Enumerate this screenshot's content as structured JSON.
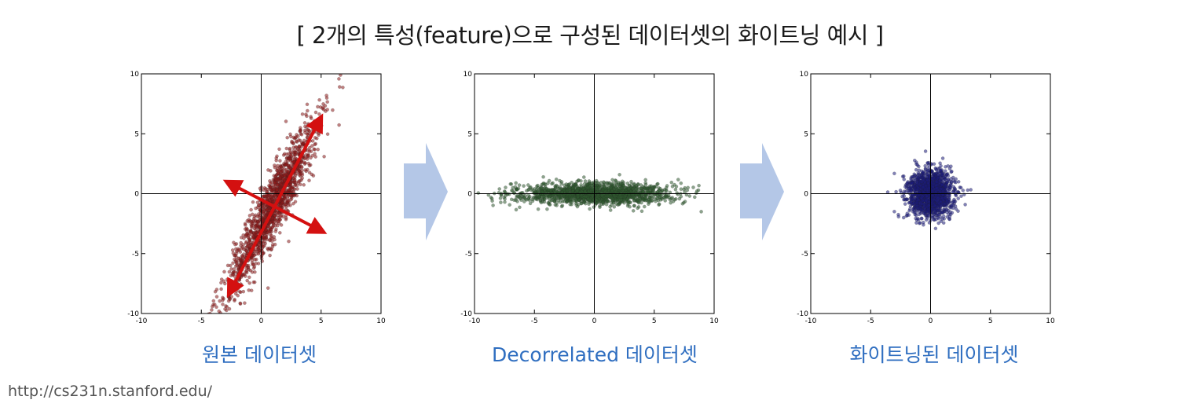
{
  "title": "[ 2개의 특성(feature)으로 구성된 데이터셋의 화이트닝 예시 ]",
  "source": "http://cs231n.stanford.edu/",
  "charts": [
    {
      "caption": "원본 데이터셋",
      "y_ticks": [
        "10",
        "5",
        "0",
        "-5",
        "-10"
      ],
      "x_ticks": [
        "-10",
        "-5",
        "0",
        "5",
        "10"
      ]
    },
    {
      "caption": "Decorrelated 데이터셋",
      "y_ticks": [
        "10",
        "5",
        "0",
        "-5",
        "-10"
      ],
      "x_ticks": [
        "-10",
        "-5",
        "0",
        "5",
        "10"
      ]
    },
    {
      "caption": "화이트닝된 데이터셋",
      "y_ticks": [
        "10",
        "5",
        "0",
        "-5",
        "-10"
      ],
      "x_ticks": [
        "-10",
        "-5",
        "0",
        "5",
        "10"
      ]
    }
  ],
  "chart_data": [
    {
      "type": "scatter",
      "xlim": [
        -10,
        10
      ],
      "ylim": [
        -10,
        10
      ],
      "grid": false,
      "color": "#8b1a1a",
      "points_approx": "correlated elliptical cloud along y ≈ 2x, x range about -3 to 5, y range about -9 to 7",
      "center": [
        1,
        -1
      ],
      "principal_axes": [
        {
          "from": [
            -2.5,
            -8
          ],
          "to": [
            4.8,
            6
          ]
        },
        {
          "from": [
            -2.5,
            0.8
          ],
          "to": [
            4.8,
            -3
          ]
        }
      ],
      "axis_arrow_color": "#d41010"
    },
    {
      "type": "scatter",
      "xlim": [
        -10,
        10
      ],
      "ylim": [
        -10,
        10
      ],
      "grid": false,
      "color": "#2f5a2f",
      "points_approx": "horizontal elongated cloud, x range about -9 to 8, y range about -1.2 to 1.2",
      "center": [
        0,
        0
      ]
    },
    {
      "type": "scatter",
      "xlim": [
        -10,
        10
      ],
      "ylim": [
        -10,
        10
      ],
      "grid": false,
      "color": "#1c1c7a",
      "points_approx": "round isotropic cloud, radius about 3 around origin",
      "center": [
        0,
        0
      ]
    }
  ],
  "flow_arrow_color": "#b4c7e7"
}
